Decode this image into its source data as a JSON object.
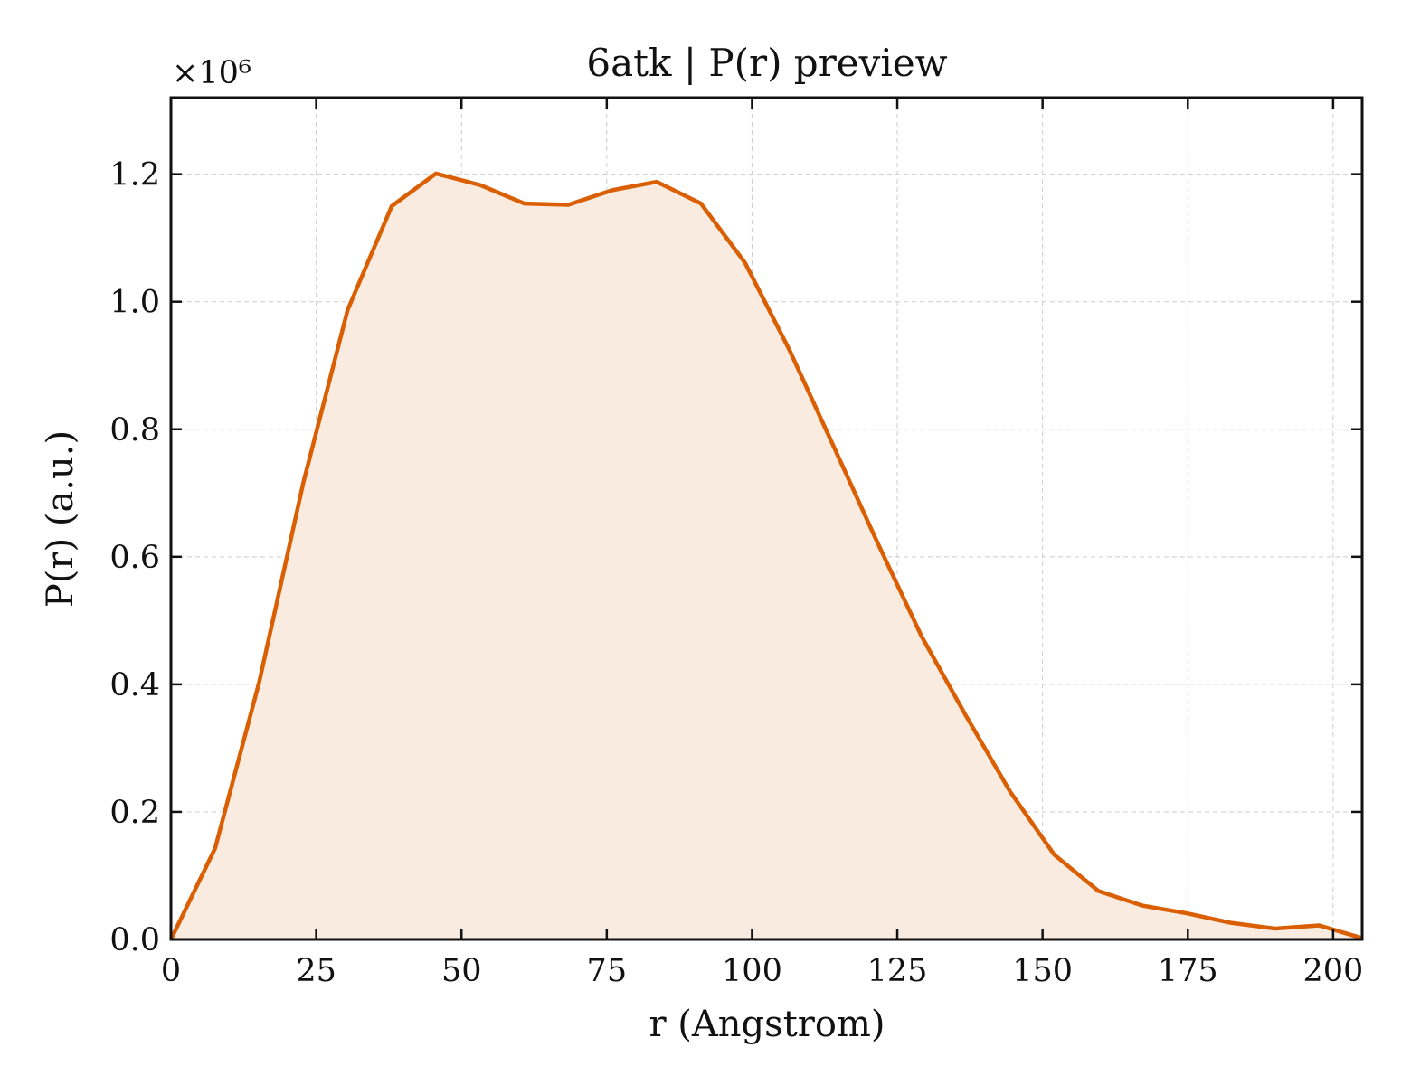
{
  "chart_data": {
    "type": "area",
    "title": "6atk | P(r) preview",
    "xlabel": "r (Angstrom)",
    "ylabel": "P(r) (a.u.)",
    "y_scale_label": "×10⁶",
    "xlim": [
      0,
      205
    ],
    "ylim": [
      0,
      1.32
    ],
    "xticks": [
      0,
      25,
      50,
      75,
      100,
      125,
      150,
      175,
      200
    ],
    "yticks": [
      0.0,
      0.2,
      0.4,
      0.6,
      0.8,
      1.0,
      1.2
    ],
    "ytick_labels": [
      "0.0",
      "0.2",
      "0.4",
      "0.6",
      "0.8",
      "1.0",
      "1.2"
    ],
    "grid": true,
    "line_color": "#d95f02",
    "fill_color": "#f9ebe0",
    "series": [
      {
        "x": [
          0,
          7.6,
          15.2,
          22.8,
          30.4,
          38.0,
          45.6,
          53.2,
          60.8,
          68.4,
          76.0,
          83.6,
          91.2,
          98.8,
          106.4,
          114.0,
          121.6,
          129.2,
          136.8,
          144.4,
          152.0,
          159.6,
          167.2,
          174.8,
          182.4,
          190.0,
          197.6,
          205.0
        ],
        "y": [
          0.0,
          0.143,
          0.404,
          0.717,
          0.987,
          1.15,
          1.201,
          1.183,
          1.154,
          1.152,
          1.175,
          1.188,
          1.154,
          1.061,
          0.925,
          0.774,
          0.622,
          0.475,
          0.351,
          0.232,
          0.133,
          0.076,
          0.053,
          0.041,
          0.026,
          0.017,
          0.022,
          0.002
        ]
      }
    ]
  }
}
